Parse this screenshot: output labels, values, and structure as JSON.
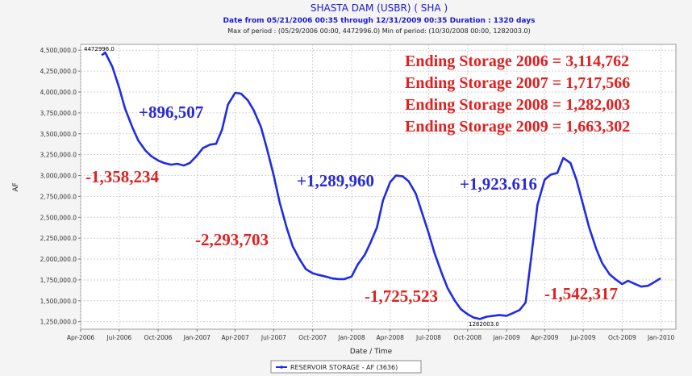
{
  "chart_data": {
    "type": "line",
    "title": "SHASTA DAM  (USBR) ( SHA )",
    "subtitle": "Date from 05/21/2006 00:35 through 12/31/2009 00:35 Duration : 1320 days",
    "subtitle2": "Max of period : (05/29/2006 00:00, 4472996.0) Min of period: (10/30/2008 00:00,  1282003.0)",
    "x_label": "Date / Time",
    "y_label": "AF",
    "grid": true,
    "legend": "bottom",
    "x": [
      "2006-05-21",
      "2006-05-29",
      "2006-06-15",
      "2006-07-01",
      "2006-07-15",
      "2006-08-01",
      "2006-08-15",
      "2006-09-01",
      "2006-09-15",
      "2006-10-01",
      "2006-10-15",
      "2006-11-01",
      "2006-11-15",
      "2006-12-01",
      "2006-12-15",
      "2007-01-01",
      "2007-01-15",
      "2007-02-01",
      "2007-02-15",
      "2007-03-01",
      "2007-03-15",
      "2007-04-01",
      "2007-04-15",
      "2007-05-01",
      "2007-05-15",
      "2007-06-01",
      "2007-06-15",
      "2007-07-01",
      "2007-07-15",
      "2007-08-01",
      "2007-08-15",
      "2007-09-01",
      "2007-09-15",
      "2007-10-01",
      "2007-10-15",
      "2007-11-01",
      "2007-11-15",
      "2007-12-01",
      "2007-12-15",
      "2008-01-01",
      "2008-01-15",
      "2008-02-01",
      "2008-02-15",
      "2008-03-01",
      "2008-03-15",
      "2008-04-01",
      "2008-04-15",
      "2008-05-01",
      "2008-05-15",
      "2008-06-01",
      "2008-06-15",
      "2008-07-01",
      "2008-07-15",
      "2008-08-01",
      "2008-08-15",
      "2008-09-01",
      "2008-09-15",
      "2008-10-01",
      "2008-10-15",
      "2008-10-30",
      "2008-11-15",
      "2008-12-01",
      "2008-12-15",
      "2009-01-01",
      "2009-01-15",
      "2009-02-01",
      "2009-02-15",
      "2009-03-01",
      "2009-03-15",
      "2009-04-01",
      "2009-04-15",
      "2009-05-01",
      "2009-05-15",
      "2009-06-01",
      "2009-06-15",
      "2009-07-01",
      "2009-07-15",
      "2009-08-01",
      "2009-08-15",
      "2009-09-01",
      "2009-09-15",
      "2009-10-01",
      "2009-10-15",
      "2009-11-01",
      "2009-11-15",
      "2009-12-01",
      "2009-12-15",
      "2009-12-31"
    ],
    "series": [
      {
        "name": "RESERVOIR STORAGE - AF (3636)",
        "color": "#1f2be6",
        "values": [
          4440000,
          4472996,
          4300000,
          4050000,
          3800000,
          3580000,
          3420000,
          3300000,
          3230000,
          3180000,
          3150000,
          3130000,
          3140000,
          3120000,
          3150000,
          3240000,
          3330000,
          3370000,
          3380000,
          3550000,
          3850000,
          3990000,
          3980000,
          3900000,
          3780000,
          3580000,
          3320000,
          3000000,
          2680000,
          2370000,
          2150000,
          1990000,
          1880000,
          1830000,
          1810000,
          1790000,
          1770000,
          1760000,
          1760000,
          1790000,
          1930000,
          2050000,
          2200000,
          2380000,
          2700000,
          2920000,
          3000000,
          2990000,
          2930000,
          2780000,
          2560000,
          2310000,
          2070000,
          1830000,
          1650000,
          1500000,
          1400000,
          1340000,
          1300000,
          1282003,
          1310000,
          1320000,
          1330000,
          1320000,
          1350000,
          1390000,
          1480000,
          2050000,
          2650000,
          2950000,
          3010000,
          3030000,
          3210000,
          3150000,
          2950000,
          2650000,
          2380000,
          2120000,
          1950000,
          1820000,
          1760000,
          1700000,
          1740000,
          1700000,
          1670000,
          1680000,
          1720000,
          1770000
        ]
      }
    ],
    "xlim": [
      "2006-04-01",
      "2010-02-05"
    ],
    "xticks": [
      {
        "value": "2006-04-01",
        "label": "Apr-2006"
      },
      {
        "value": "2006-07-01",
        "label": "Jul-2006"
      },
      {
        "value": "2006-10-01",
        "label": "Oct-2006"
      },
      {
        "value": "2007-01-01",
        "label": "Jan-2007"
      },
      {
        "value": "2007-04-01",
        "label": "Apr-2007"
      },
      {
        "value": "2007-07-01",
        "label": "Jul-2007"
      },
      {
        "value": "2007-10-01",
        "label": "Oct-2007"
      },
      {
        "value": "2008-01-01",
        "label": "Jan-2008"
      },
      {
        "value": "2008-04-01",
        "label": "Apr-2008"
      },
      {
        "value": "2008-07-01",
        "label": "Jul-2008"
      },
      {
        "value": "2008-10-01",
        "label": "Oct-2008"
      },
      {
        "value": "2009-01-01",
        "label": "Jan-2009"
      },
      {
        "value": "2009-04-01",
        "label": "Apr-2009"
      },
      {
        "value": "2009-07-01",
        "label": "Jul-2009"
      },
      {
        "value": "2009-10-01",
        "label": "Oct-2009"
      },
      {
        "value": "2010-01-01",
        "label": "Jan-2010"
      }
    ],
    "ylim": [
      1160000,
      4570000
    ],
    "yticks": [
      {
        "value": 1250000,
        "label": "1,250,000.0"
      },
      {
        "value": 1500000,
        "label": "1,500,000.0"
      },
      {
        "value": 1750000,
        "label": "1,750,000.0"
      },
      {
        "value": 2000000,
        "label": "2,000,000.0"
      },
      {
        "value": 2250000,
        "label": "2,250,000.0"
      },
      {
        "value": 2500000,
        "label": "2,500,000.0"
      },
      {
        "value": 2750000,
        "label": "2,750,000.0"
      },
      {
        "value": 3000000,
        "label": "3,000,000.0"
      },
      {
        "value": 3250000,
        "label": "3,250,000.0"
      },
      {
        "value": 3500000,
        "label": "3,500,000.0"
      },
      {
        "value": 3750000,
        "label": "3,750,000.0"
      },
      {
        "value": 4000000,
        "label": "4,000,000.0"
      },
      {
        "value": 4250000,
        "label": "4,250,000.0"
      },
      {
        "value": 4500000,
        "label": "4,500,000.0"
      }
    ],
    "annotations": [
      {
        "text": "4472996.0",
        "color": "#000000"
      },
      {
        "text": "1282003.0",
        "color": "#000000"
      },
      {
        "text": "+896,507",
        "color": "#2a2ad8"
      },
      {
        "text": "-1,358,234",
        "color": "#e02020"
      },
      {
        "text": "-2,293,703",
        "color": "#e02020"
      },
      {
        "text": "+1,289,960",
        "color": "#2a2ad8"
      },
      {
        "text": "-1,725,523",
        "color": "#e02020"
      },
      {
        "text": "+1,923.616",
        "color": "#2a2ad8"
      },
      {
        "text": "-1,542,317",
        "color": "#e02020"
      },
      {
        "text": "Ending Storage 2006 = 3,114,762",
        "color": "#e02020"
      },
      {
        "text": "Ending Storage 2007 = 1,717,566",
        "color": "#e02020"
      },
      {
        "text": "Ending Storage 2008 = 1,282,003",
        "color": "#e02020"
      },
      {
        "text": "Ending Storage 2009 = 1,663,302",
        "color": "#e02020"
      }
    ]
  }
}
